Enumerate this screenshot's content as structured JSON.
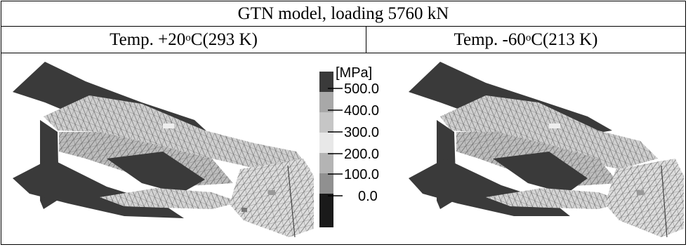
{
  "table": {
    "title": "GTN model, loading 5760 kN",
    "columns": [
      {
        "prefix": "Temp. +20",
        "degree": "o",
        "suffix": "C(293 K)"
      },
      {
        "prefix": "Temp. -60",
        "degree": "o",
        "suffix": "C(213 K)"
      }
    ]
  },
  "legend": {
    "unit": "[MPa]",
    "ticks": [
      "500.0",
      "400.0",
      "300.0",
      "200.0",
      "100.0",
      "0.0"
    ],
    "colors": [
      "#3a3a3a",
      "#a8a8a8",
      "#c6c6c6",
      "#e8e8e8",
      "#b4b4b4",
      "#909090",
      "#1a1a1a"
    ]
  }
}
